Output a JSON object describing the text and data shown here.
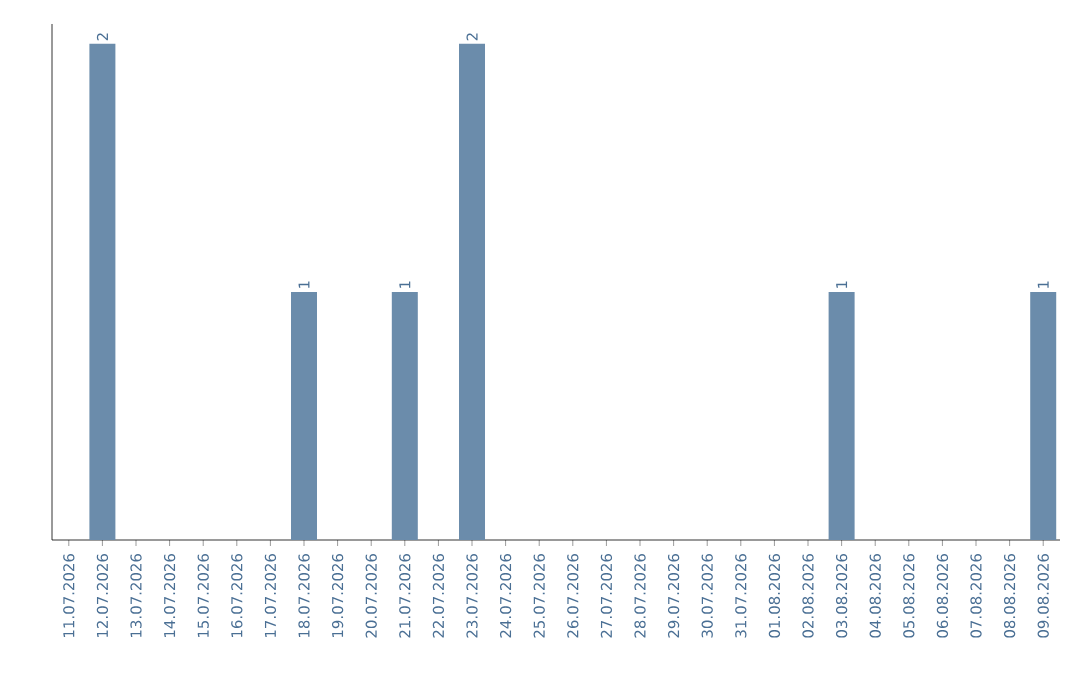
{
  "chart_data": {
    "type": "bar",
    "categories": [
      "11.07.2026",
      "12.07.2026",
      "13.07.2026",
      "14.07.2026",
      "15.07.2026",
      "16.07.2026",
      "17.07.2026",
      "18.07.2026",
      "19.07.2026",
      "20.07.2026",
      "21.07.2026",
      "22.07.2026",
      "23.07.2026",
      "24.07.2026",
      "25.07.2026",
      "26.07.2026",
      "27.07.2026",
      "28.07.2026",
      "29.07.2026",
      "30.07.2026",
      "31.07.2026",
      "01.08.2026",
      "02.08.2026",
      "03.08.2026",
      "04.08.2026",
      "05.08.2026",
      "06.08.2026",
      "07.08.2026",
      "08.08.2026",
      "09.08.2026"
    ],
    "values": [
      0,
      2,
      0,
      0,
      0,
      0,
      0,
      1,
      0,
      0,
      1,
      0,
      2,
      0,
      0,
      0,
      0,
      0,
      0,
      0,
      0,
      0,
      0,
      1,
      0,
      0,
      0,
      0,
      0,
      1
    ],
    "value_labels": [
      null,
      "2",
      null,
      null,
      null,
      null,
      null,
      "1",
      null,
      null,
      "1",
      null,
      "2",
      null,
      null,
      null,
      null,
      null,
      null,
      null,
      null,
      null,
      null,
      "1",
      null,
      null,
      null,
      null,
      null,
      "1"
    ],
    "color": "#6b8cab",
    "tick_labels": "x"
  }
}
